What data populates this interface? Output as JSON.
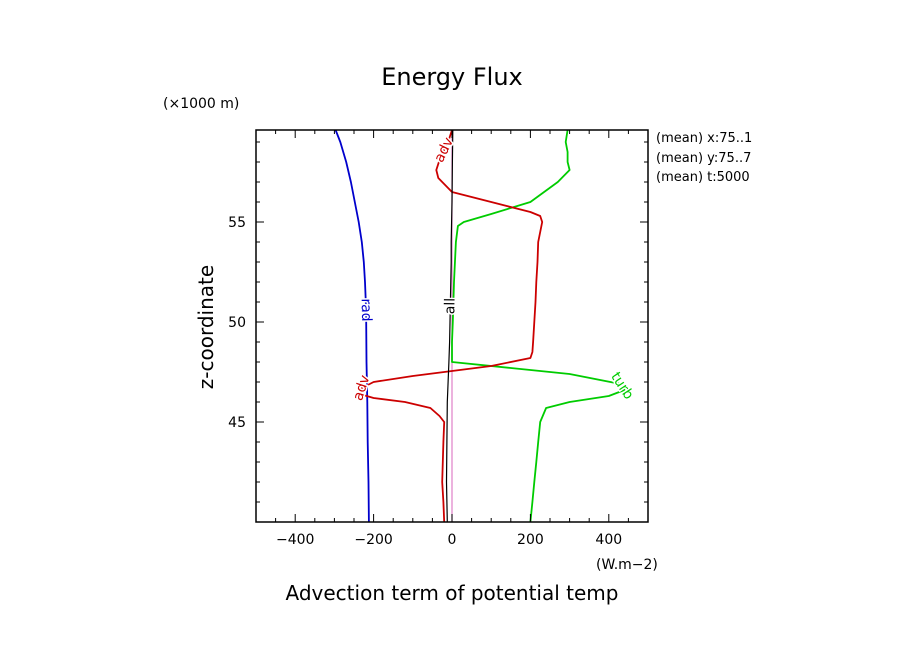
{
  "chart_data": {
    "type": "line",
    "title": "Energy Flux",
    "xlabel": "Advection term of potential temp",
    "ylabel": "z-coordinate",
    "x_units": "(W.m−2)",
    "y_units": "(×1000 m)",
    "xlim": [
      -500,
      500
    ],
    "ylim": [
      40,
      59.6
    ],
    "x_ticks": [
      -400,
      -200,
      0,
      200,
      400
    ],
    "x_tick_labels": [
      "−400",
      "−200",
      "0",
      "200",
      "400"
    ],
    "y_ticks": [
      45,
      50,
      55
    ],
    "y_tick_labels": [
      "45",
      "50",
      "55"
    ],
    "grid": false,
    "annotations": [
      "(mean) x:75..1",
      "(mean) y:75..7",
      "(mean) t:5000"
    ],
    "series": [
      {
        "name": "rad",
        "color": "#0000cc",
        "x": [
          -212,
          -213,
          -215,
          -216,
          -218,
          -219,
          -220,
          -222,
          -225,
          -230,
          -238,
          -248,
          -258,
          -270,
          -285,
          -297
        ],
        "y": [
          40.0,
          42.0,
          44.0,
          46.0,
          48.0,
          50.0,
          51.0,
          52.0,
          53.0,
          54.0,
          55.0,
          56.0,
          57.0,
          58.0,
          59.0,
          59.6
        ]
      },
      {
        "name": "adv",
        "color": "#cc0000",
        "x": [
          -20,
          -22,
          -25,
          -22,
          -20,
          -32,
          -55,
          -120,
          -200,
          -235,
          -230,
          -200,
          -100,
          100,
          200,
          205,
          207,
          210,
          213,
          215,
          218,
          220,
          225,
          230,
          225,
          200,
          100,
          0,
          -35,
          -40,
          -30,
          -10,
          0
        ],
        "y": [
          40.0,
          41.0,
          42.0,
          44.0,
          45.0,
          45.3,
          45.7,
          46.0,
          46.2,
          46.4,
          46.7,
          47.0,
          47.3,
          47.8,
          48.2,
          48.5,
          49.0,
          50.0,
          51.0,
          52.0,
          53.0,
          54.0,
          54.5,
          55.0,
          55.3,
          55.5,
          56.0,
          56.5,
          57.2,
          57.6,
          58.2,
          59.0,
          59.6
        ]
      },
      {
        "name": "turb",
        "color": "#00cc00",
        "x": [
          200,
          205,
          210,
          215,
          220,
          225,
          240,
          300,
          400,
          440,
          430,
          300,
          150,
          0,
          0,
          2,
          5,
          10,
          15,
          30,
          100,
          200,
          270,
          300,
          295,
          295,
          290,
          295
        ],
        "y": [
          40.0,
          41.0,
          42.0,
          43.0,
          44.0,
          45.0,
          45.7,
          46.0,
          46.3,
          46.6,
          46.9,
          47.4,
          47.7,
          48.0,
          49.0,
          50.0,
          52.0,
          54.0,
          54.8,
          55.0,
          55.4,
          56.0,
          57.0,
          57.6,
          58.0,
          58.5,
          59.0,
          59.6
        ]
      },
      {
        "name": "all",
        "color": "#000000",
        "x": [
          -12,
          -13,
          -14,
          -13,
          -12,
          -10,
          -8,
          -6,
          -5,
          -4,
          -3,
          -2,
          -2,
          -1,
          0,
          1,
          2
        ],
        "y": [
          40.0,
          41.0,
          42.0,
          44.0,
          46.0,
          47.0,
          48.0,
          49.0,
          50.0,
          51.0,
          52.0,
          53.0,
          54.0,
          55.0,
          56.0,
          58.0,
          59.6
        ]
      },
      {
        "name": "",
        "color": "#e080c8",
        "x": [
          0,
          0
        ],
        "y": [
          40.0,
          59.6
        ]
      }
    ],
    "curve_labels": [
      {
        "text": "rad",
        "series": 0,
        "at_y": 50.6
      },
      {
        "text": "adv",
        "series": 1,
        "at_y": 46.7
      },
      {
        "text": "adv",
        "series": 1,
        "at_y": 58.6
      },
      {
        "text": "turb",
        "series": 2,
        "at_y": 46.8
      },
      {
        "text": "all",
        "series": 3,
        "at_y": 50.8
      }
    ]
  }
}
